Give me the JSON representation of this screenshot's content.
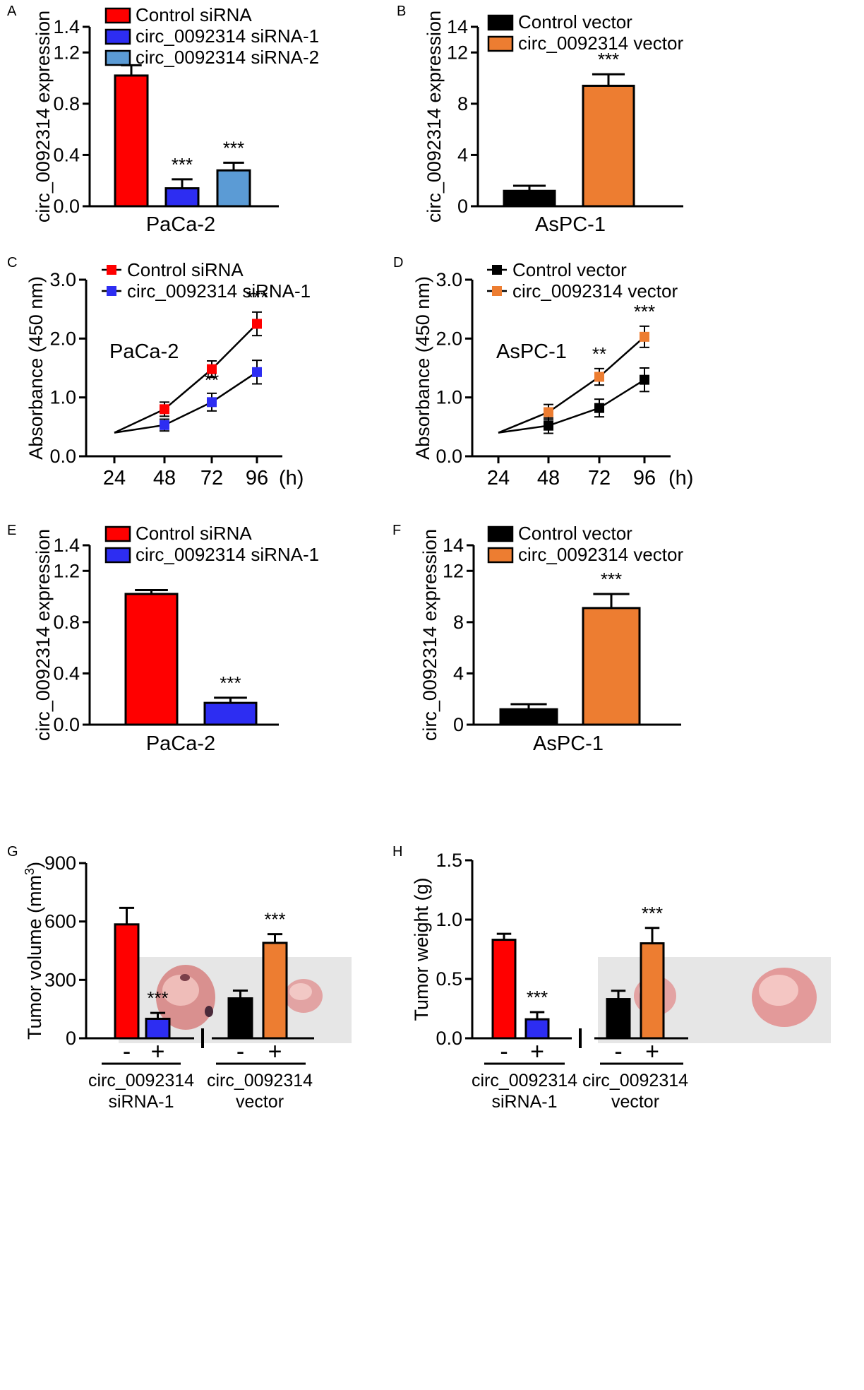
{
  "colors": {
    "red": "#ff0000",
    "blue": "#2d2df2",
    "lightblue": "#5b9bd5",
    "black": "#000000",
    "orange": "#ed7d31",
    "tumor_bg": "#e6e6e6",
    "tumor_pink": "#e3a8a6"
  },
  "chart_data": [
    {
      "panel": "A",
      "type": "bar",
      "ylabel": "circ_0092314 expression",
      "xlabel": "PaCa-2",
      "ylim": [
        0,
        1.4
      ],
      "yticks": [
        "0.0",
        "0.4",
        "0.8",
        "1.2",
        "1.4"
      ],
      "legend": [
        "Control siRNA",
        "circ_0092314 siRNA-1",
        "circ_0092314 siRNA-2"
      ],
      "colors": [
        "red",
        "blue",
        "lightblue"
      ],
      "values": [
        1.02,
        0.14,
        0.28
      ],
      "errors": [
        0.08,
        0.07,
        0.06
      ],
      "stars": [
        "",
        "***",
        "***"
      ]
    },
    {
      "panel": "B",
      "type": "bar",
      "ylabel": "circ_0092314 expression",
      "xlabel": "AsPC-1",
      "ylim": [
        0,
        14
      ],
      "yticks": [
        "0",
        "4",
        "8",
        "12",
        "14"
      ],
      "legend": [
        "Control vector",
        "circ_0092314 vector"
      ],
      "colors": [
        "black",
        "orange"
      ],
      "values": [
        1.2,
        9.4
      ],
      "errors": [
        0.4,
        0.9
      ],
      "stars": [
        "",
        "***"
      ]
    },
    {
      "panel": "C",
      "type": "line",
      "ylabel": "Absorbance (450 nm)",
      "xunit": "(h)",
      "ylim": [
        0,
        3.0
      ],
      "yticks": [
        "0.0",
        "1.0",
        "2.0",
        "3.0"
      ],
      "x": [
        24,
        48,
        72,
        96
      ],
      "xticks": [
        "24",
        "48",
        "72",
        "96"
      ],
      "annotation": "PaCa-2",
      "series": [
        {
          "name": "Control siRNA",
          "color": "red",
          "values": [
            0.4,
            0.8,
            1.48,
            2.25
          ],
          "errors": [
            0,
            0.12,
            0.14,
            0.2
          ]
        },
        {
          "name": "circ_0092314 siRNA-1",
          "color": "blue",
          "values": [
            0.4,
            0.53,
            0.92,
            1.43
          ],
          "errors": [
            0,
            0.1,
            0.15,
            0.2
          ]
        }
      ],
      "stars": [
        "",
        "",
        "**",
        "***"
      ]
    },
    {
      "panel": "D",
      "type": "line",
      "ylabel": "Absorbance (450 nm)",
      "xunit": "(h)",
      "ylim": [
        0,
        3.0
      ],
      "yticks": [
        "0.0",
        "1.0",
        "2.0",
        "3.0"
      ],
      "x": [
        24,
        48,
        72,
        96
      ],
      "xticks": [
        "24",
        "48",
        "72",
        "96"
      ],
      "annotation": "AsPC-1",
      "series": [
        {
          "name": "Control vector",
          "color": "black",
          "values": [
            0.4,
            0.52,
            0.82,
            1.3
          ],
          "errors": [
            0,
            0.13,
            0.15,
            0.2
          ]
        },
        {
          "name": "circ_0092314 vector",
          "color": "orange",
          "values": [
            0.4,
            0.75,
            1.35,
            2.03
          ],
          "errors": [
            0,
            0.13,
            0.14,
            0.18
          ]
        }
      ],
      "stars": [
        "",
        "",
        "**",
        "***"
      ]
    },
    {
      "panel": "E",
      "type": "bar",
      "ylabel": "circ_0092314 expression",
      "xlabel": "PaCa-2",
      "ylim": [
        0,
        1.4
      ],
      "yticks": [
        "0.0",
        "0.4",
        "0.8",
        "1.2",
        "1.4"
      ],
      "legend": [
        "Control siRNA",
        "circ_0092314 siRNA-1"
      ],
      "colors": [
        "red",
        "blue"
      ],
      "values": [
        1.02,
        0.17
      ],
      "errors": [
        0.03,
        0.04
      ],
      "stars": [
        "",
        "***"
      ]
    },
    {
      "panel": "F",
      "type": "bar",
      "ylabel": "circ_0092314 expression",
      "xlabel": "AsPC-1",
      "ylim": [
        0,
        14
      ],
      "yticks": [
        "0",
        "4",
        "8",
        "12",
        "14"
      ],
      "legend": [
        "Control vector",
        "circ_0092314 vector"
      ],
      "colors": [
        "black",
        "orange"
      ],
      "values": [
        1.2,
        9.1
      ],
      "errors": [
        0.4,
        1.1
      ],
      "stars": [
        "",
        "***"
      ]
    },
    {
      "panel": "G",
      "type": "bar",
      "ylabel": "Tumor volume (mm3)",
      "ylabel_main": "Tumor volume (mm",
      "ylabel_sup": "3",
      "ylabel_close": ")",
      "ylim": [
        0,
        900
      ],
      "yticks": [
        "0",
        "300",
        "600",
        "900"
      ],
      "signs": [
        "-",
        "+",
        "-",
        "+"
      ],
      "colors": [
        "red",
        "blue",
        "black",
        "orange"
      ],
      "values": [
        585,
        100,
        205,
        490
      ],
      "errors": [
        85,
        30,
        40,
        45
      ],
      "stars": [
        "",
        "***",
        "",
        "***"
      ],
      "groups": [
        {
          "line1": "circ_0092314",
          "line2": "siRNA-1"
        },
        {
          "line1": "circ_0092314",
          "line2": "vector"
        }
      ]
    },
    {
      "panel": "H",
      "type": "bar",
      "ylabel": "Tumor weight (g)",
      "ylim": [
        0,
        1.5
      ],
      "yticks": [
        "0.0",
        "0.5",
        "1.0",
        "1.5"
      ],
      "signs": [
        "-",
        "+",
        "-",
        "+"
      ],
      "colors": [
        "red",
        "blue",
        "black",
        "orange"
      ],
      "values": [
        0.83,
        0.16,
        0.33,
        0.8
      ],
      "errors": [
        0.05,
        0.06,
        0.07,
        0.13
      ],
      "stars": [
        "",
        "***",
        "",
        "***"
      ],
      "groups": [
        {
          "line1": "circ_0092314",
          "line2": "siRNA-1"
        },
        {
          "line1": "circ_0092314",
          "line2": "vector"
        }
      ]
    }
  ]
}
